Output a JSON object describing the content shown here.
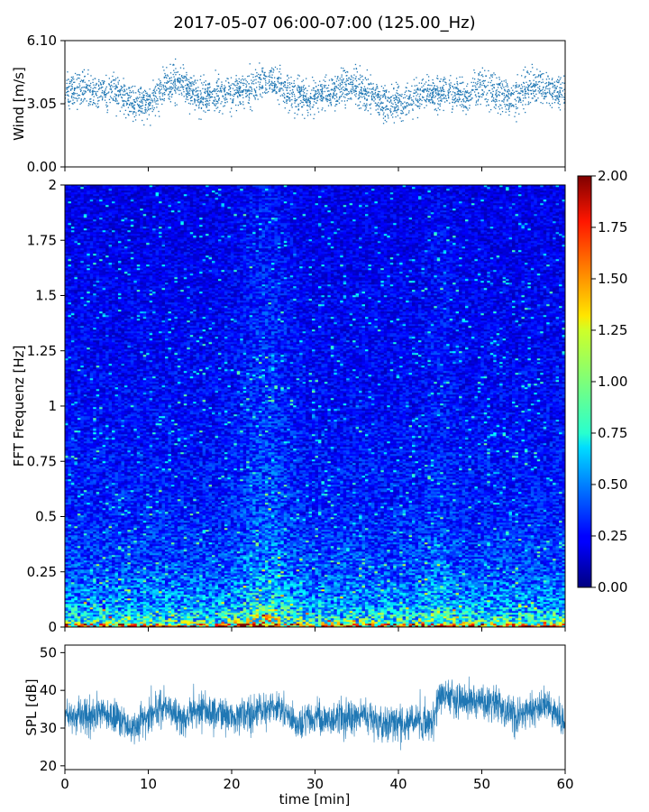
{
  "chart_data": [
    {
      "type": "scatter",
      "panel": "wind",
      "title": "2017-05-07 06:00-07:00 (125.00_Hz)",
      "ylabel": "Wind [m/s]",
      "xlim": [
        0,
        60
      ],
      "ylim": [
        0,
        6.1
      ],
      "yticks": [
        "6.10",
        "3.05",
        "0.00"
      ],
      "color": "#1f77b4",
      "series": [
        {
          "x": [
            0,
            2,
            4,
            6,
            8,
            10,
            12,
            14,
            16,
            18,
            20,
            22,
            24,
            26,
            28,
            30,
            32,
            34,
            36,
            38,
            40,
            42,
            44,
            46,
            48,
            50,
            52,
            54,
            56,
            58,
            60
          ],
          "y": [
            3.6,
            3.8,
            3.5,
            3.7,
            3.1,
            3.0,
            4.0,
            4.1,
            3.4,
            3.5,
            3.6,
            3.8,
            4.2,
            3.9,
            3.3,
            3.4,
            3.5,
            4.0,
            3.6,
            3.2,
            3.1,
            3.4,
            3.6,
            3.6,
            3.4,
            3.9,
            3.5,
            3.3,
            4.0,
            3.8,
            3.5
          ]
        }
      ]
    },
    {
      "type": "heatmap",
      "panel": "spectrogram",
      "ylabel": "FFT Frequenz [Hz]",
      "xlim": [
        0,
        60
      ],
      "ylim": [
        0,
        2
      ],
      "yticks": [
        "2",
        "1.75",
        "1.5",
        "1.25",
        "1",
        "0.75",
        "0.5",
        "0.25",
        "0"
      ],
      "colormap": "jet",
      "colorbar": {
        "range": [
          0,
          2
        ],
        "ticks": [
          "2.00",
          "1.75",
          "1.50",
          "1.25",
          "1.00",
          "0.75",
          "0.50",
          "0.25",
          "0.00"
        ]
      },
      "frequency_profile_hz": [
        0.0,
        0.02,
        0.05,
        0.1,
        0.25,
        0.5,
        1.0,
        2.0
      ],
      "typical_level": [
        1.5,
        0.9,
        0.7,
        0.55,
        0.4,
        0.3,
        0.25,
        0.2
      ]
    },
    {
      "type": "line",
      "panel": "spl",
      "xlabel": "time [min]",
      "ylabel": "SPL [dB]",
      "xlim": [
        0,
        60
      ],
      "ylim": [
        19,
        52
      ],
      "xticks": [
        "0",
        "10",
        "20",
        "30",
        "40",
        "50",
        "60"
      ],
      "yticks": [
        "50",
        "40",
        "30",
        "20"
      ],
      "color": "#1f77b4",
      "series": [
        {
          "x": [
            0,
            2,
            4,
            6,
            8,
            10,
            12,
            14,
            16,
            18,
            20,
            22,
            24,
            26,
            28,
            30,
            32,
            34,
            36,
            38,
            40,
            42,
            44,
            45,
            46,
            48,
            50,
            52,
            54,
            56,
            58,
            60
          ],
          "y": [
            33,
            33,
            34,
            33,
            30,
            33,
            36,
            32,
            35,
            34,
            33,
            34,
            35,
            35,
            31,
            33,
            32,
            33,
            33,
            31,
            31,
            32,
            31,
            39,
            38,
            37,
            37,
            36,
            33,
            35,
            36,
            31
          ]
        }
      ]
    }
  ]
}
